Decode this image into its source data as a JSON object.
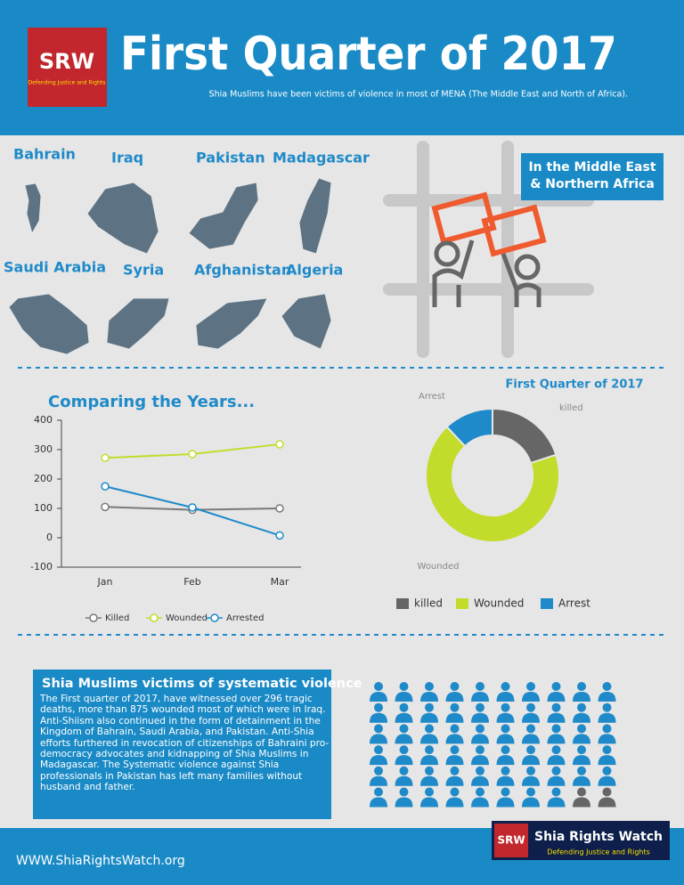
{
  "header": {
    "logo": "SRW",
    "logo_tagline": "Defending Justice and Rights",
    "title": "First Quarter of 2017",
    "subtitle": "Shia Muslims have been victims of violence in most of MENA (The Middle East and North of Africa)."
  },
  "maps": [
    "Bahrain",
    "Iraq",
    "Pakistan",
    "Madagascar",
    "Saudi Arabia",
    "Syria",
    "Afghanistan",
    "Algeria"
  ],
  "region_box": "In the Middle East & Northern Africa",
  "chart_data": [
    {
      "type": "line",
      "title": "Comparing the Years...",
      "categories": [
        "Jan",
        "Feb",
        "Mar"
      ],
      "series": [
        {
          "name": "Killed",
          "color": "#7a7a7a",
          "values": [
            105,
            95,
            100
          ]
        },
        {
          "name": "Wounded",
          "color": "#c3dc2b",
          "values": [
            272,
            285,
            318
          ]
        },
        {
          "name": "Arrested",
          "color": "#1f8ac9",
          "values": [
            175,
            103,
            8
          ]
        }
      ],
      "ylim": [
        -100,
        400
      ],
      "yticks": [
        -100,
        0,
        100,
        200,
        300,
        400
      ],
      "grid": false,
      "legend": "bottom"
    },
    {
      "type": "donut",
      "title": "First Quarter of 2017",
      "categories": [
        "killed",
        "Wounded",
        "Arrest"
      ],
      "values": [
        20,
        68,
        12
      ],
      "colors": [
        "#666666",
        "#c3dc2b",
        "#1f8ac9"
      ],
      "legend": "bottom"
    }
  ],
  "info": {
    "heading": "Shia Muslims victims of systematic violence",
    "body": "The First quarter of 2017, have witnessed over 296 tragic deaths, more than 875 wounded most of which were in Iraq. Anti-Shiism also continued in the form of detainment in the Kingdom of Bahrain, Saudi Arabia, and Pakistan. Anti-Shia efforts furthered in revocation of citizenships of Bahraini pro-democracy advocates and kidnapping of Shia Muslims in Madagascar. The Systematic violence against Shia professionals in Pakistan has left many families without husband and father."
  },
  "footer": {
    "url": "WWW.ShiaRightsWatch.org",
    "logo": "SRW",
    "name": "Shia Rights Watch",
    "tagline": "Defending Justice and Rights"
  }
}
